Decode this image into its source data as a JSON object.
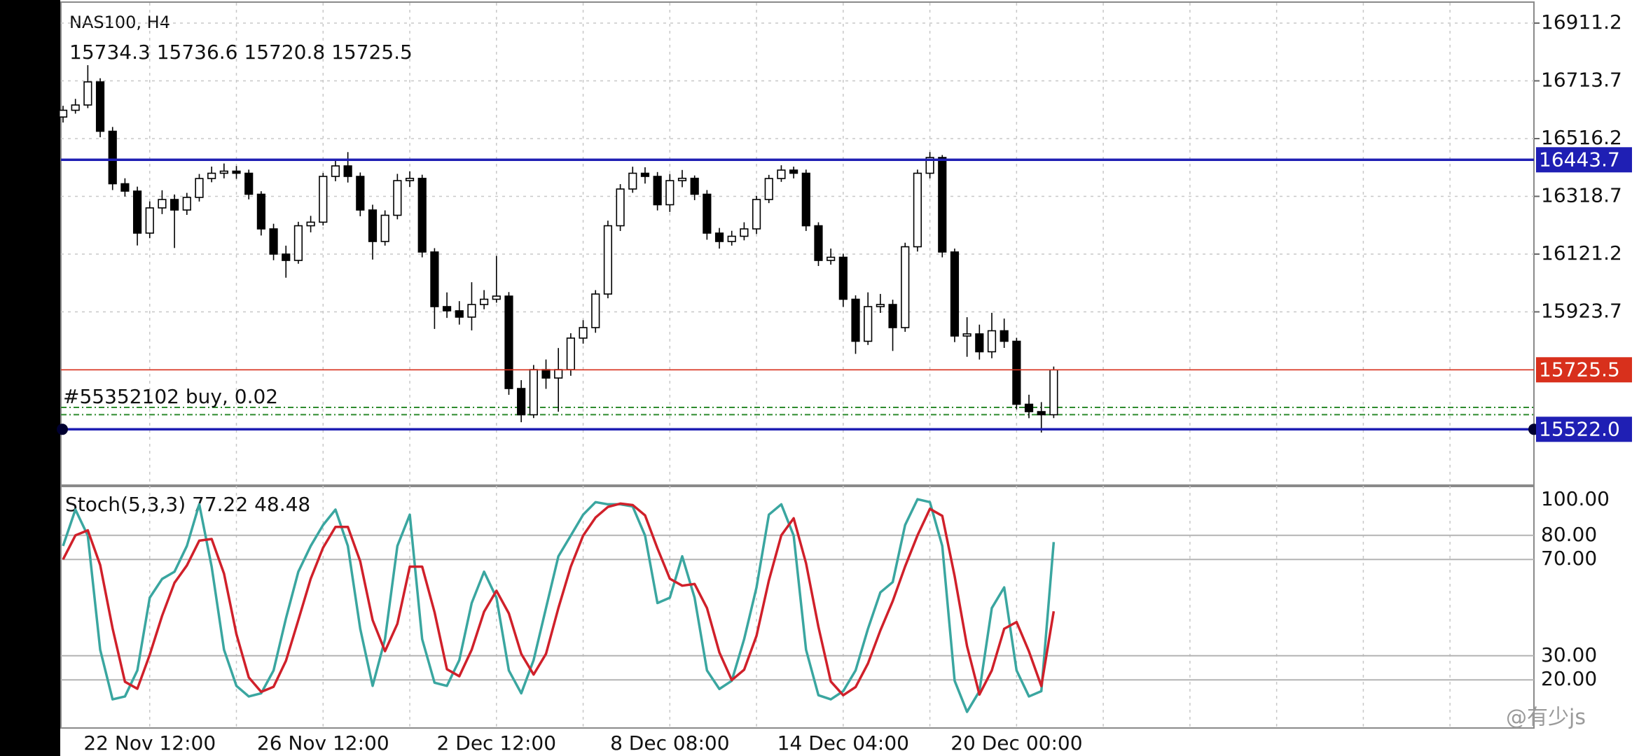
{
  "chart_data": [
    {
      "type": "candlestick",
      "title": "NAS100, H4",
      "subtitle": "15734.3 15736.6 15720.8 15725.5",
      "categories": [
        null,
        null,
        null,
        null,
        null,
        null,
        null,
        "22 Nov 12:00",
        null,
        null,
        null,
        null,
        null,
        null,
        null,
        null,
        null,
        null,
        null,
        null,
        null,
        "26 Nov 12:00",
        null,
        null,
        null,
        null,
        null,
        null,
        null,
        null,
        null,
        null,
        null,
        null,
        null,
        "2 Dec 12:00",
        null,
        null,
        null,
        null,
        null,
        null,
        null,
        null,
        null,
        null,
        null,
        null,
        null,
        "8 Dec 08:00",
        null,
        null,
        null,
        null,
        null,
        null,
        null,
        null,
        null,
        null,
        null,
        null,
        null,
        "14 Dec 04:00",
        null,
        null,
        null,
        null,
        null,
        null,
        null,
        null,
        null,
        null,
        null,
        null,
        null,
        "20 Dec 00:00",
        null,
        null,
        null
      ],
      "open": [
        16590.0,
        16613.1,
        16631.1,
        16710.1,
        16541.3,
        16361.8,
        16336.6,
        16193.0,
        16279.2,
        16307.9,
        16272.0,
        16315.1,
        16379.7,
        16397.7,
        16404.9,
        16397.7,
        16325.9,
        16207.4,
        16121.2,
        16099.6,
        16218.1,
        16230.4,
        16386.9,
        16422.8,
        16386.9,
        16272.0,
        16164.3,
        16254.0,
        16372.5,
        16380.2,
        16128.4,
        15941.6,
        15927.3,
        15905.7,
        15948.8,
        15966.8,
        15977.5,
        15661.5,
        15571.8,
        15726.2,
        15697.4,
        15726.2,
        15833.9,
        15869.8,
        15984.7,
        16218.1,
        16343.8,
        16397.7,
        16386.9,
        16290.0,
        16372.5,
        16380.4,
        16325.9,
        16193.0,
        16164.3,
        16182.2,
        16207.4,
        16307.9,
        16379.7,
        16408.5,
        16397.7,
        16218.1,
        16099.6,
        16110.4,
        15966.8,
        15823.1,
        15941.6,
        15948.8,
        15869.8,
        16146.3,
        16397.7,
        16451.5,
        16128.4,
        15841.1,
        15848.3,
        15787.2,
        15859.0,
        15823.1,
        15607.7,
        15582.5,
        15571.8
      ],
      "high": [
        16628.4,
        16652.0,
        16767.3,
        16722.6,
        16556.0,
        16380.5,
        16351.9,
        16301.4,
        16339.5,
        16325.1,
        16330.6,
        16395.2,
        16420.4,
        16431.0,
        16422.3,
        16410.1,
        16336.2,
        16225.0,
        16150.1,
        16231.7,
        16252.0,
        16398.5,
        16440.1,
        16470.0,
        16400.3,
        16290.1,
        16270.8,
        16395.6,
        16404.0,
        16392.7,
        16141.5,
        15990.2,
        15960.4,
        16025.0,
        15998.1,
        16115.0,
        15991.2,
        15690.1,
        15742.0,
        15760.8,
        15800.0,
        15850.6,
        15895.3,
        15998.0,
        16235.6,
        16360.5,
        16420.0,
        16418.2,
        16401.8,
        16395.0,
        16408.9,
        16390.1,
        16340.2,
        16210.6,
        16200.9,
        16230.0,
        16320.5,
        16392.1,
        16425.0,
        16420.3,
        16410.2,
        16230.0,
        16140.2,
        16122.7,
        15980.2,
        15990.4,
        15985.0,
        15965.2,
        16160.0,
        16410.2,
        16470.1,
        16460.0,
        16140.0,
        15905.4,
        15880.0,
        15920.4,
        15900.7,
        15835.0,
        15640.3,
        15615.0,
        15736.6
      ],
      "low": [
        16571.2,
        16601.5,
        16620.4,
        16520.8,
        16340.2,
        16318.3,
        16150.7,
        16175.6,
        16258.0,
        16142.0,
        16255.3,
        16301.0,
        16366.9,
        16380.2,
        16378.6,
        16308.4,
        16184.8,
        16100.3,
        16040.5,
        16088.2,
        16195.6,
        16219.2,
        16370.4,
        16366.0,
        16250.7,
        16102.5,
        16150.2,
        16240.1,
        16351.0,
        16110.0,
        15865.3,
        15903.0,
        15880.1,
        15860.2,
        15932.6,
        15955.0,
        15640.0,
        15546.3,
        15560.5,
        15660.3,
        15582.0,
        15705.1,
        15815.0,
        15852.2,
        15970.1,
        16200.3,
        16330.9,
        16362.4,
        16270.5,
        16265.3,
        16350.0,
        16305.7,
        16170.4,
        16140.0,
        16150.2,
        16168.3,
        16190.0,
        16295.6,
        16368.2,
        16380.1,
        16200.4,
        16080.5,
        16085.0,
        15940.3,
        15780.0,
        15810.5,
        15920.1,
        15790.0,
        15855.6,
        16130.0,
        16380.3,
        16110.2,
        15820.3,
        15770.0,
        15760.6,
        15765.0,
        15800.4,
        15590.2,
        15560.0,
        15511.0,
        15560.4
      ],
      "close": [
        16613.1,
        16631.1,
        16710.1,
        16541.3,
        16361.8,
        16336.6,
        16193.0,
        16279.2,
        16307.9,
        16272.0,
        16315.1,
        16379.7,
        16397.7,
        16404.9,
        16397.7,
        16325.9,
        16207.4,
        16121.2,
        16099.6,
        16218.1,
        16230.4,
        16386.9,
        16422.8,
        16386.9,
        16272.0,
        16164.3,
        16254.0,
        16372.5,
        16380.2,
        16128.4,
        15941.6,
        15927.3,
        15905.7,
        15948.8,
        15966.8,
        15977.5,
        15661.5,
        15571.8,
        15726.2,
        15697.4,
        15726.2,
        15833.9,
        15869.8,
        15984.7,
        16218.1,
        16343.8,
        16397.7,
        16386.9,
        16290.0,
        16372.5,
        16380.4,
        16325.9,
        16193.0,
        16164.3,
        16182.2,
        16207.4,
        16307.9,
        16379.7,
        16408.5,
        16397.7,
        16218.1,
        16099.6,
        16110.4,
        15966.8,
        15823.1,
        15941.6,
        15948.8,
        15869.8,
        16146.3,
        16397.7,
        16451.5,
        16128.4,
        15841.1,
        15848.3,
        15787.2,
        15859.0,
        15823.1,
        15607.7,
        15582.5,
        15571.8,
        15725.5
      ],
      "up_color": "#ffffff",
      "down_color": "#000000",
      "ylim": [
        15331.2,
        16990.2
      ],
      "yticks": [
        {
          "value": 16911.2,
          "label": "16911.2"
        },
        {
          "value": 16713.7,
          "label": "16713.7"
        },
        {
          "value": 16516.2,
          "label": "16516.2"
        },
        {
          "value": 16318.7,
          "label": "16318.7"
        },
        {
          "value": 16121.2,
          "label": "16121.2"
        },
        {
          "value": 15923.7,
          "label": "15923.7"
        }
      ],
      "grid": true,
      "hlines": [
        {
          "value": 16443.7,
          "label": "16443.7",
          "color": "#1f1fb4"
        },
        {
          "value": 15725.5,
          "label": "15725.5",
          "color": "#d8301c"
        },
        {
          "value": 15522.0,
          "label": "15522.0",
          "color": "#1f1fb4"
        }
      ],
      "order_lines": [
        {
          "value": 15597.0,
          "color": "#2e8b2e"
        },
        {
          "value": 15572.0,
          "color": "#2e8b2e"
        }
      ],
      "annotation": "#55352102 buy, 0.02"
    },
    {
      "type": "line",
      "title": "Stoch(5,3,3) 77.22 48.48",
      "series": [
        {
          "color": "#3aa6a0",
          "values": [
            75.6,
            90.7,
            79.9,
            32.5,
            11.9,
            13.1,
            23.9,
            54.1,
            61.9,
            64.9,
            75.6,
            92.9,
            67.0,
            32.5,
            17.5,
            13.1,
            14.4,
            23.9,
            45.5,
            64.9,
            75.6,
            84.3,
            90.7,
            75.6,
            41.2,
            17.5,
            36.9,
            75.6,
            88.6,
            36.9,
            18.8,
            17.5,
            28.2,
            51.9,
            64.9,
            54.1,
            23.9,
            14.4,
            28.2,
            49.8,
            71.3,
            79.9,
            88.6,
            93.8,
            92.9,
            92.9,
            92.0,
            79.9,
            51.9,
            54.1,
            71.3,
            54.1,
            23.9,
            16.2,
            19.6,
            36.9,
            58.4,
            88.6,
            92.9,
            79.9,
            32.5,
            13.6,
            11.9,
            15.3,
            23.9,
            41.2,
            56.3,
            60.6,
            84.3,
            95.0,
            93.8,
            75.6,
            19.6,
            6.7,
            15.3,
            49.8,
            58.4,
            23.9,
            13.1,
            15.3,
            77.22
          ]
        },
        {
          "color": "#d0202a",
          "values": [
            70.0,
            80.0,
            82.1,
            67.7,
            41.4,
            19.2,
            16.3,
            30.4,
            46.6,
            60.3,
            67.5,
            77.8,
            78.5,
            64.1,
            39.0,
            21.0,
            15.0,
            17.1,
            27.9,
            44.8,
            62.0,
            74.9,
            83.5,
            83.5,
            69.2,
            44.8,
            31.9,
            43.3,
            67.0,
            67.0,
            48.1,
            24.4,
            21.5,
            32.5,
            48.3,
            57.0,
            47.6,
            30.8,
            22.2,
            30.8,
            49.8,
            67.0,
            79.9,
            87.4,
            91.8,
            93.2,
            92.6,
            88.3,
            74.6,
            62.0,
            59.1,
            59.8,
            49.8,
            31.4,
            19.9,
            24.2,
            38.3,
            61.3,
            80.0,
            87.1,
            68.4,
            42.0,
            19.3,
            13.6,
            17.0,
            26.8,
            40.5,
            52.7,
            67.1,
            80.0,
            91.0,
            88.1,
            63.0,
            34.0,
            13.9,
            23.9,
            41.2,
            44.0,
            31.8,
            17.4,
            48.48
          ]
        }
      ],
      "ylim": [
        0,
        100
      ],
      "yticks": [
        {
          "value": 100,
          "label": "100.00"
        },
        {
          "value": 80,
          "label": "80.00"
        },
        {
          "value": 70,
          "label": "70.00"
        },
        {
          "value": 30,
          "label": "30.00"
        },
        {
          "value": 20,
          "label": "20.00"
        }
      ],
      "grid": true
    }
  ],
  "watermark": "@有少js"
}
